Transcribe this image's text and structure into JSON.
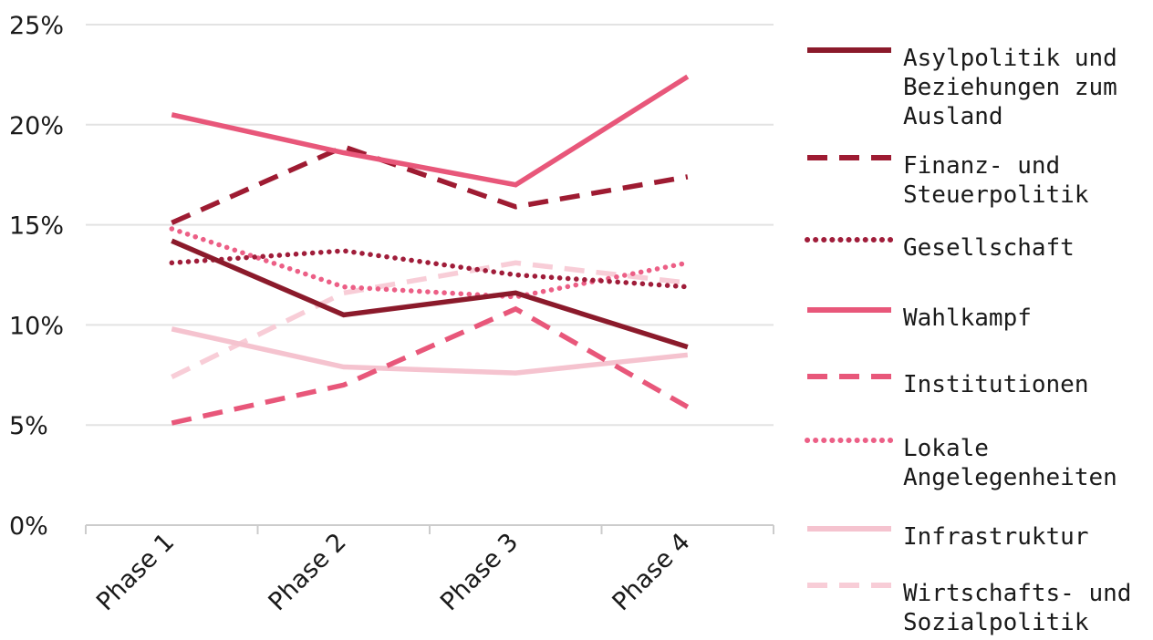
{
  "chart_data": {
    "type": "line",
    "title": "",
    "xlabel": "",
    "ylabel": "",
    "categories": [
      "Phase 1",
      "Phase 2",
      "Phase 3",
      "Phase 4"
    ],
    "y_ticks": [
      "0%",
      "5%",
      "10%",
      "15%",
      "20%",
      "25%"
    ],
    "ylim": [
      0,
      25
    ],
    "y_unit": "%",
    "grid": "horizontal",
    "legend_position": "right",
    "series": [
      {
        "name": "Asylpolitik und Beziehungen zum Ausland",
        "legend_lines": [
          "Asylpolitik und",
          "Beziehungen zum",
          "Ausland"
        ],
        "values": [
          14.2,
          10.5,
          11.6,
          8.9
        ],
        "color": "#8b1a2b",
        "style": "solid"
      },
      {
        "name": "Finanz- und Steuerpolitik",
        "legend_lines": [
          "Finanz- und",
          "Steuerpolitik"
        ],
        "values": [
          15.1,
          18.9,
          15.9,
          17.4
        ],
        "color": "#9e1b32",
        "style": "dashed"
      },
      {
        "name": "Gesellschaft",
        "legend_lines": [
          "Gesellschaft"
        ],
        "values": [
          13.1,
          13.7,
          12.5,
          11.9
        ],
        "color": "#a01d3a",
        "style": "dotted"
      },
      {
        "name": "Wahlkampf",
        "legend_lines": [
          "Wahlkampf"
        ],
        "values": [
          20.5,
          18.6,
          17.0,
          22.4
        ],
        "color": "#e8577a",
        "style": "solid"
      },
      {
        "name": "Institutionen",
        "legend_lines": [
          "Institutionen"
        ],
        "values": [
          5.1,
          7.0,
          10.8,
          5.9
        ],
        "color": "#e8577a",
        "style": "dashed"
      },
      {
        "name": "Lokale Angelegenheiten",
        "legend_lines": [
          "Lokale",
          "Angelegenheiten"
        ],
        "values": [
          14.8,
          11.9,
          11.4,
          13.1
        ],
        "color": "#ec5f86",
        "style": "dotted"
      },
      {
        "name": "Infrastruktur",
        "legend_lines": [
          "Infrastruktur"
        ],
        "values": [
          9.8,
          7.9,
          7.6,
          8.5
        ],
        "color": "#f5c3cf",
        "style": "solid"
      },
      {
        "name": "Wirtschafts- und Sozialpolitik",
        "legend_lines": [
          "Wirtschafts- und",
          "Sozialpolitik"
        ],
        "values": [
          7.4,
          11.6,
          13.1,
          12.1
        ],
        "color": "#f8cdd7",
        "style": "dashed"
      }
    ]
  }
}
